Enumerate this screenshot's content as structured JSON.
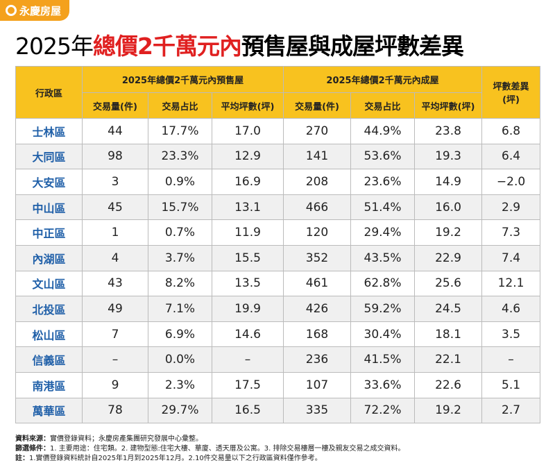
{
  "logo": "永慶房屋",
  "title": {
    "parts": [
      "2025年",
      "總價2千萬元內",
      "預售屋與成屋坪數差異"
    ]
  },
  "table": {
    "district_header": "行政區",
    "groups": [
      "2025年總價2千萬元內預售屋",
      "2025年總價2千萬元內成屋"
    ],
    "diff_header": [
      "坪數差異",
      "(坪)"
    ],
    "subheaders": [
      "交易量(件)",
      "交易占比",
      "平均坪數(坪)",
      "交易量(件)",
      "交易占比",
      "平均坪數(坪)"
    ],
    "rows": [
      [
        "士林區",
        "44",
        "17.7%",
        "17.0",
        "270",
        "44.9%",
        "23.8",
        "6.8"
      ],
      [
        "大同區",
        "98",
        "23.3%",
        "12.9",
        "141",
        "53.6%",
        "19.3",
        "6.4"
      ],
      [
        "大安區",
        "3",
        "0.9%",
        "16.9",
        "208",
        "23.6%",
        "14.9",
        "−2.0"
      ],
      [
        "中山區",
        "45",
        "15.7%",
        "13.1",
        "466",
        "51.4%",
        "16.0",
        "2.9"
      ],
      [
        "中正區",
        "1",
        "0.7%",
        "11.9",
        "120",
        "29.4%",
        "19.2",
        "7.3"
      ],
      [
        "內湖區",
        "4",
        "3.7%",
        "15.5",
        "352",
        "43.5%",
        "22.9",
        "7.4"
      ],
      [
        "文山區",
        "43",
        "8.2%",
        "13.5",
        "461",
        "62.8%",
        "25.6",
        "12.1"
      ],
      [
        "北投區",
        "49",
        "7.1%",
        "19.9",
        "426",
        "59.2%",
        "24.5",
        "4.6"
      ],
      [
        "松山區",
        "7",
        "6.9%",
        "14.6",
        "168",
        "30.4%",
        "18.1",
        "3.5"
      ],
      [
        "信義區",
        "–",
        "0.0%",
        "–",
        "236",
        "41.5%",
        "22.1",
        "–"
      ],
      [
        "南港區",
        "9",
        "2.3%",
        "17.5",
        "107",
        "33.6%",
        "22.6",
        "5.1"
      ],
      [
        "萬華區",
        "78",
        "29.7%",
        "16.5",
        "335",
        "72.2%",
        "19.2",
        "2.7"
      ]
    ]
  },
  "notes": [
    {
      "label": "資料來源：",
      "text": "實價登錄資料；永慶房產集團研究發展中心彙整。"
    },
    {
      "label": "篩選條件：",
      "text": "1. 主要用途：住宅類。2. 建物型態:住宅大樓、華廈、透天厝及公寓。3. 排除交易樓層一樓及親友交易之成交資料。"
    },
    {
      "label": "註：",
      "text": "1.實價登錄資料統計自2025年1月到2025年12月。2.10件交易量以下之行政區資料僅作參考。"
    }
  ]
}
